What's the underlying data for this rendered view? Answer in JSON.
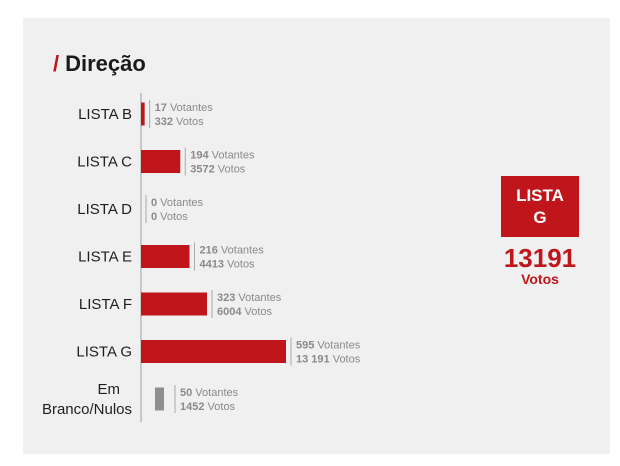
{
  "title": "Direção",
  "title_prefix": "/",
  "winner": {
    "line1": "LISTA",
    "line2": "G",
    "votes": "13191",
    "votes_label": "Votos"
  },
  "colors": {
    "accent": "#c0161b",
    "blank_bar": "#8f8f8f",
    "axis": "#9e9e9e"
  },
  "chart_data": {
    "type": "bar",
    "orientation": "horizontal",
    "measure": "votos",
    "categories": [
      "LISTA B",
      "LISTA C",
      "LISTA D",
      "LISTA E",
      "LISTA F",
      "LISTA G",
      "Em Branco/Nulos"
    ],
    "category_lines": [
      [
        "LISTA B"
      ],
      [
        "LISTA C"
      ],
      [
        "LISTA D"
      ],
      [
        "LISTA E"
      ],
      [
        "LISTA F"
      ],
      [
        "LISTA G"
      ],
      [
        "Em",
        "Branco/Nulos"
      ]
    ],
    "votantes": [
      17,
      194,
      0,
      216,
      323,
      595,
      50
    ],
    "votos": [
      332,
      3572,
      0,
      4413,
      6004,
      13191,
      1452
    ],
    "votantes_labels": [
      "17",
      "194",
      "0",
      "216",
      "323",
      "595",
      "50"
    ],
    "votos_labels": [
      "332",
      "3572",
      "0",
      "4413",
      "6004",
      "13 191",
      "1452"
    ],
    "votantes_unit": "Votantes",
    "votos_unit": "Votos",
    "grid": false,
    "legend": "none"
  }
}
